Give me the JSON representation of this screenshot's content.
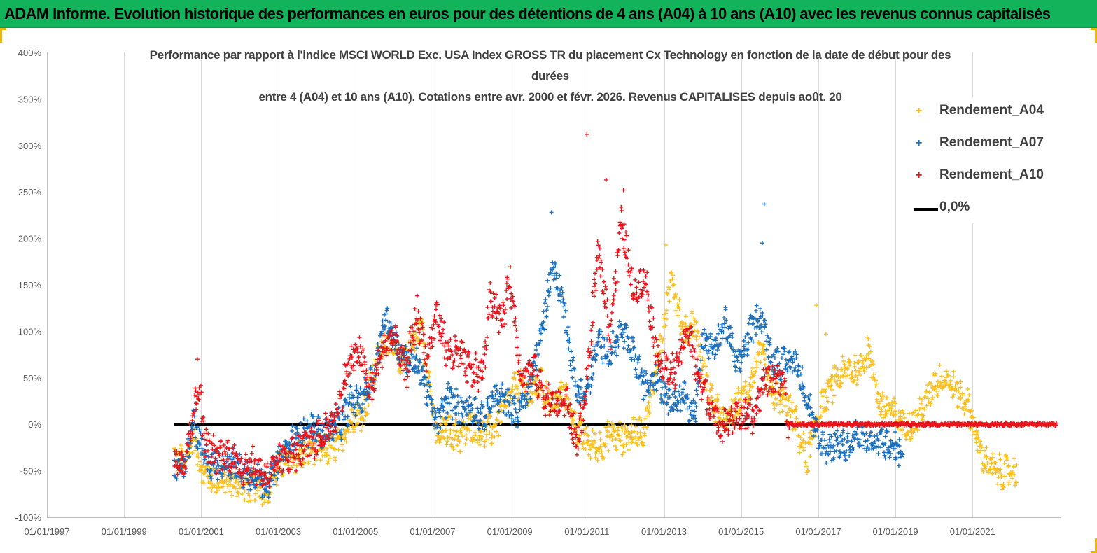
{
  "header": {
    "title": "ADAM Informe. Evolution historique des performances en euros pour des détentions de 4 ans (A04) à 10 ans (A10) avec les revenus connus capitalisés"
  },
  "chart_data": {
    "type": "scatter",
    "title_lines": [
      "Performance par rapport à l'indice MSCI WORLD Exc. USA Index GROSS TR  du placement Cx Technology  en fonction de la date de début pour des",
      "durées",
      "entre 4 (A04) et 10 ans (A10).  Cotations entre avr. 2000 et févr. 2026. Revenus CAPITALISES depuis août. 20"
    ],
    "x_axis": {
      "min_year": 1997,
      "max_year": 2023.3,
      "tick_years": [
        1997,
        1999,
        2001,
        2003,
        2005,
        2007,
        2009,
        2011,
        2013,
        2015,
        2017,
        2019,
        2021
      ],
      "tick_labels": [
        "01/01/1997",
        "01/01/1999",
        "01/01/2001",
        "01/01/2003",
        "01/01/2005",
        "01/01/2007",
        "01/01/2009",
        "01/01/2011",
        "01/01/2013",
        "01/01/2015",
        "01/01/2017",
        "01/01/2019",
        "01/01/2021"
      ]
    },
    "y_axis": {
      "min": -100,
      "max": 400,
      "ticks": [
        -100,
        -50,
        0,
        50,
        100,
        150,
        200,
        250,
        300,
        350,
        400
      ],
      "tick_labels": [
        "-100%",
        "-50%",
        "0%",
        "50%",
        "100%",
        "150%",
        "200%",
        "250%",
        "300%",
        "350%",
        "400%"
      ]
    },
    "marker_symbol": "+",
    "series": [
      {
        "name": "Rendement_A04",
        "color": "#fbc020",
        "x_range": [
          2000.3,
          2022.15
        ],
        "anchors": [
          [
            2000.3,
            -35
          ],
          [
            2000.6,
            -42
          ],
          [
            2000.8,
            -10
          ],
          [
            2001.0,
            -50
          ],
          [
            2001.3,
            -60
          ],
          [
            2001.7,
            -62
          ],
          [
            2002.0,
            -65
          ],
          [
            2002.4,
            -68
          ],
          [
            2002.7,
            -72
          ],
          [
            2002.9,
            -55
          ],
          [
            2003.1,
            -40
          ],
          [
            2003.5,
            -35
          ],
          [
            2003.9,
            -25
          ],
          [
            2004.2,
            -28
          ],
          [
            2004.6,
            -22
          ],
          [
            2004.9,
            10
          ],
          [
            2005.2,
            10
          ],
          [
            2005.5,
            60
          ],
          [
            2005.8,
            95
          ],
          [
            2006.1,
            70
          ],
          [
            2006.4,
            80
          ],
          [
            2006.7,
            105
          ],
          [
            2006.9,
            50
          ],
          [
            2007.1,
            -15
          ],
          [
            2007.4,
            -5
          ],
          [
            2007.7,
            -15
          ],
          [
            2008.0,
            0
          ],
          [
            2008.3,
            -10
          ],
          [
            2008.6,
            -5
          ],
          [
            2008.9,
            20
          ],
          [
            2009.2,
            45
          ],
          [
            2009.5,
            30
          ],
          [
            2009.8,
            45
          ],
          [
            2010.1,
            20
          ],
          [
            2010.4,
            35
          ],
          [
            2010.7,
            0
          ],
          [
            2011.0,
            -20
          ],
          [
            2011.3,
            -25
          ],
          [
            2011.6,
            -10
          ],
          [
            2011.9,
            -15
          ],
          [
            2012.2,
            -10
          ],
          [
            2012.5,
            -5
          ],
          [
            2012.8,
            60
          ],
          [
            2013.0,
            105
          ],
          [
            2013.2,
            165
          ],
          [
            2013.5,
            95
          ],
          [
            2013.8,
            110
          ],
          [
            2014.0,
            60
          ],
          [
            2014.3,
            20
          ],
          [
            2014.6,
            0
          ],
          [
            2014.9,
            20
          ],
          [
            2015.2,
            40
          ],
          [
            2015.5,
            80
          ],
          [
            2015.8,
            30
          ],
          [
            2016.1,
            25
          ],
          [
            2016.4,
            5
          ],
          [
            2016.7,
            -40
          ],
          [
            2017.0,
            10
          ],
          [
            2017.2,
            30
          ],
          [
            2017.5,
            50
          ],
          [
            2017.8,
            60
          ],
          [
            2018.0,
            55
          ],
          [
            2018.3,
            80
          ],
          [
            2018.6,
            20
          ],
          [
            2018.9,
            15
          ],
          [
            2019.2,
            0
          ],
          [
            2019.5,
            0
          ],
          [
            2019.8,
            25
          ],
          [
            2020.0,
            45
          ],
          [
            2020.3,
            50
          ],
          [
            2020.6,
            35
          ],
          [
            2020.9,
            20
          ],
          [
            2021.2,
            -30
          ],
          [
            2021.5,
            -48
          ],
          [
            2021.8,
            -52
          ],
          [
            2022.15,
            -50
          ]
        ],
        "extra_points": [
          [
            2016.95,
            128
          ],
          [
            2017.2,
            97
          ],
          [
            2018.3,
            92
          ],
          [
            2013.05,
            193
          ]
        ]
      },
      {
        "name": "Rendement_A07",
        "color": "#1a6fbf",
        "x_range": [
          2000.3,
          2019.2
        ],
        "anchors": [
          [
            2000.3,
            -48
          ],
          [
            2000.6,
            -45
          ],
          [
            2000.8,
            5
          ],
          [
            2001.0,
            -30
          ],
          [
            2001.3,
            -45
          ],
          [
            2001.7,
            -40
          ],
          [
            2002.0,
            -50
          ],
          [
            2002.4,
            -55
          ],
          [
            2002.7,
            -65
          ],
          [
            2002.9,
            -50
          ],
          [
            2003.1,
            -35
          ],
          [
            2003.5,
            -10
          ],
          [
            2003.9,
            -5
          ],
          [
            2004.2,
            -10
          ],
          [
            2004.6,
            0
          ],
          [
            2004.9,
            25
          ],
          [
            2005.2,
            30
          ],
          [
            2005.5,
            55
          ],
          [
            2005.8,
            120
          ],
          [
            2006.1,
            80
          ],
          [
            2006.4,
            70
          ],
          [
            2006.7,
            60
          ],
          [
            2006.9,
            30
          ],
          [
            2007.1,
            0
          ],
          [
            2007.4,
            30
          ],
          [
            2007.7,
            15
          ],
          [
            2008.0,
            20
          ],
          [
            2008.3,
            5
          ],
          [
            2008.6,
            30
          ],
          [
            2008.9,
            25
          ],
          [
            2009.2,
            10
          ],
          [
            2009.5,
            35
          ],
          [
            2009.8,
            95
          ],
          [
            2010.1,
            170
          ],
          [
            2010.4,
            130
          ],
          [
            2010.7,
            40
          ],
          [
            2011.0,
            30
          ],
          [
            2011.3,
            90
          ],
          [
            2011.6,
            75
          ],
          [
            2011.9,
            100
          ],
          [
            2012.2,
            75
          ],
          [
            2012.5,
            40
          ],
          [
            2012.8,
            55
          ],
          [
            2013.0,
            35
          ],
          [
            2013.2,
            25
          ],
          [
            2013.5,
            30
          ],
          [
            2013.8,
            10
          ],
          [
            2014.0,
            90
          ],
          [
            2014.3,
            80
          ],
          [
            2014.6,
            110
          ],
          [
            2014.9,
            60
          ],
          [
            2015.2,
            95
          ],
          [
            2015.5,
            120
          ],
          [
            2015.8,
            70
          ],
          [
            2016.1,
            65
          ],
          [
            2016.4,
            70
          ],
          [
            2016.7,
            30
          ],
          [
            2017.0,
            -20
          ],
          [
            2017.2,
            -25
          ],
          [
            2017.5,
            -20
          ],
          [
            2017.8,
            -25
          ],
          [
            2018.0,
            -10
          ],
          [
            2018.3,
            -20
          ],
          [
            2018.6,
            -15
          ],
          [
            2018.9,
            -25
          ],
          [
            2019.2,
            -30
          ]
        ],
        "extra_points": [
          [
            2010.08,
            228
          ],
          [
            2015.6,
            237
          ],
          [
            2015.55,
            195
          ]
        ]
      },
      {
        "name": "Rendement_A10",
        "color": "#e8141c",
        "x_range": [
          2000.3,
          2023.2
        ],
        "anchors": [
          [
            2000.3,
            -40
          ],
          [
            2000.6,
            -35
          ],
          [
            2000.8,
            15
          ],
          [
            2000.95,
            40
          ],
          [
            2001.1,
            -20
          ],
          [
            2001.4,
            -35
          ],
          [
            2001.7,
            -30
          ],
          [
            2002.0,
            -45
          ],
          [
            2002.4,
            -45
          ],
          [
            2002.7,
            -55
          ],
          [
            2002.9,
            -50
          ],
          [
            2003.1,
            -35
          ],
          [
            2003.5,
            -30
          ],
          [
            2003.9,
            -20
          ],
          [
            2004.2,
            -10
          ],
          [
            2004.5,
            10
          ],
          [
            2004.8,
            60
          ],
          [
            2005.1,
            80
          ],
          [
            2005.4,
            35
          ],
          [
            2005.7,
            80
          ],
          [
            2006.0,
            95
          ],
          [
            2006.3,
            55
          ],
          [
            2006.6,
            120
          ],
          [
            2006.85,
            70
          ],
          [
            2007.1,
            120
          ],
          [
            2007.4,
            75
          ],
          [
            2007.7,
            75
          ],
          [
            2008.0,
            55
          ],
          [
            2008.3,
            55
          ],
          [
            2008.5,
            140
          ],
          [
            2008.8,
            110
          ],
          [
            2009.0,
            160
          ],
          [
            2009.3,
            50
          ],
          [
            2009.6,
            60
          ],
          [
            2009.9,
            30
          ],
          [
            2010.2,
            20
          ],
          [
            2010.5,
            25
          ],
          [
            2010.7,
            -20
          ],
          [
            2010.9,
            10
          ],
          [
            2011.1,
            90
          ],
          [
            2011.3,
            190
          ],
          [
            2011.6,
            100
          ],
          [
            2011.9,
            220
          ],
          [
            2012.2,
            140
          ],
          [
            2012.5,
            160
          ],
          [
            2012.8,
            80
          ],
          [
            2013.0,
            60
          ],
          [
            2013.3,
            55
          ],
          [
            2013.6,
            105
          ],
          [
            2013.9,
            50
          ],
          [
            2014.1,
            30
          ],
          [
            2014.4,
            0
          ],
          [
            2014.7,
            5
          ],
          [
            2015.0,
            10
          ],
          [
            2015.3,
            5
          ],
          [
            2015.6,
            50
          ],
          [
            2015.9,
            50
          ],
          [
            2016.15,
            40
          ],
          [
            2016.2,
            0
          ],
          [
            2023.2,
            0
          ]
        ],
        "extra_points": [
          [
            2011.0,
            312
          ],
          [
            2011.5,
            263
          ],
          [
            2011.95,
            252
          ],
          [
            2000.9,
            70
          ]
        ]
      },
      {
        "name": "0,0%",
        "color": "#000000",
        "type": "line",
        "x": [
          2000.3,
          2016.2
        ],
        "y": [
          0,
          0
        ]
      }
    ],
    "legend": {
      "position": "right",
      "entries": [
        "Rendement_A04",
        "Rendement_A07",
        "Rendement_A10",
        "0,0%"
      ]
    },
    "colors": {
      "a04": "#fbc020",
      "a07": "#1a6fbf",
      "a10": "#e8141c",
      "zero": "#000000",
      "banner": "#12b35a"
    }
  }
}
